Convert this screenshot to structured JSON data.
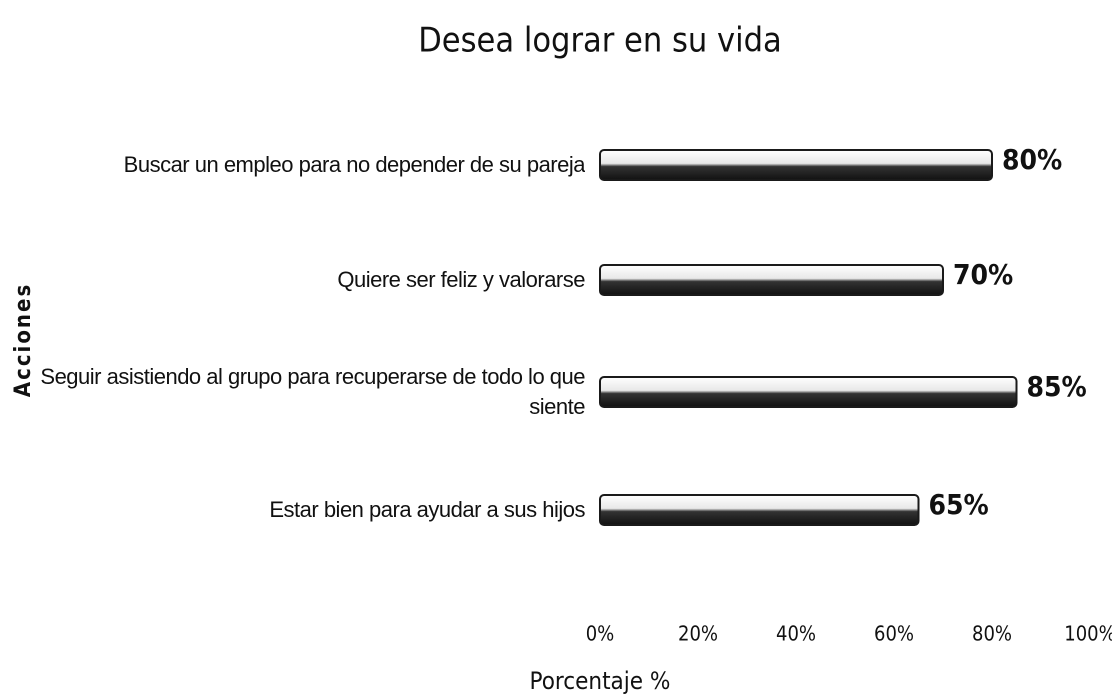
{
  "chart_data": {
    "type": "bar",
    "orientation": "horizontal",
    "title": "Desea lograr en su vida",
    "categories": [
      "Buscar un empleo para no depender de su pareja",
      "Quiere ser feliz y valorarse",
      "Seguir asistiendo al grupo para recuperarse de todo lo que siente",
      "Estar bien para ayudar a sus hijos"
    ],
    "values": [
      80,
      70,
      85,
      65
    ],
    "value_labels": [
      "80%",
      "70%",
      "85%",
      "65%"
    ],
    "color": "#1a1a1a",
    "xlim": [
      0,
      100
    ],
    "xticks": [
      {
        "value": 0,
        "label": "0%"
      },
      {
        "value": 20,
        "label": "20%"
      },
      {
        "value": 40,
        "label": "40%"
      },
      {
        "value": 60,
        "label": "60%"
      },
      {
        "value": 80,
        "label": "80%"
      },
      {
        "value": 100,
        "label": "100%"
      }
    ],
    "xlabel": "Porcentaje %",
    "ylabel": "Acciones",
    "grid": false
  }
}
